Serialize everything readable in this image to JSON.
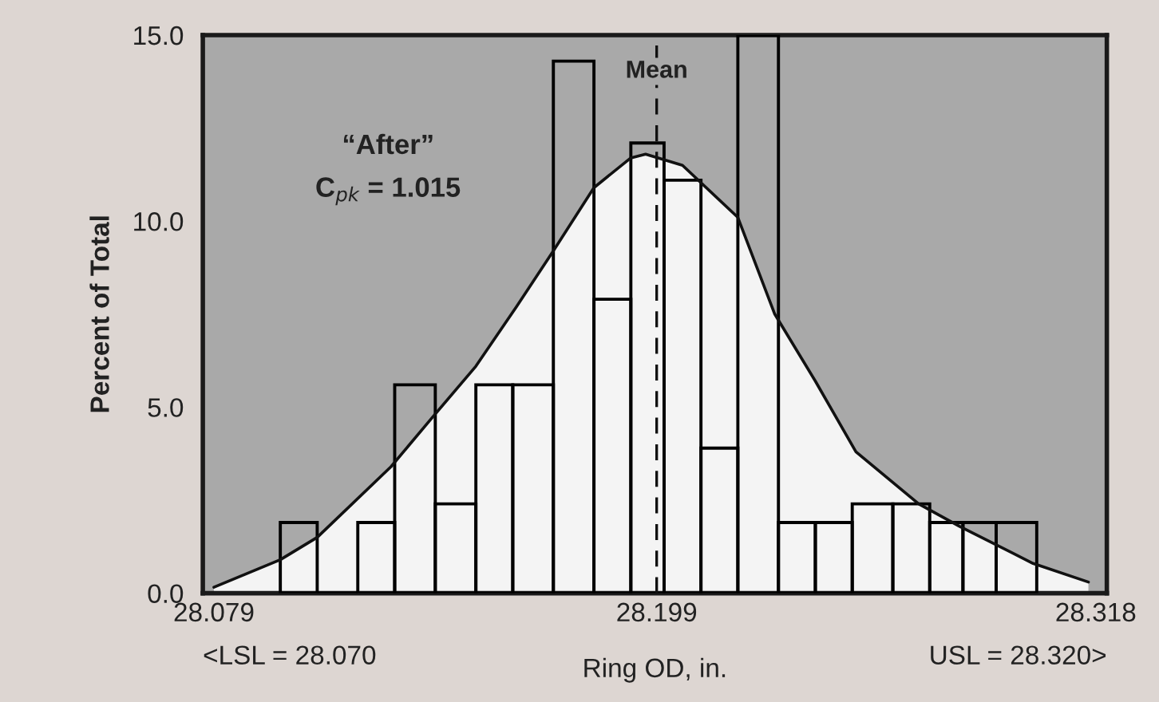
{
  "chart_data": {
    "type": "histogram",
    "xlabel": "Ring OD, in.",
    "ylabel": "Percent of Total",
    "bins": [
      28.097,
      28.107,
      28.118,
      28.128,
      28.139,
      28.15,
      28.16,
      28.171,
      28.182,
      28.192,
      28.201,
      28.211,
      28.221,
      28.232,
      28.242,
      28.252,
      28.263,
      28.273,
      28.282,
      28.291,
      28.302
    ],
    "values": [
      1.9,
      0,
      1.9,
      5.6,
      2.4,
      5.6,
      5.6,
      14.3,
      7.9,
      12.1,
      11.1,
      3.9,
      15,
      1.9,
      1.9,
      2.4,
      2.4,
      1.9,
      1.9,
      1.9
    ],
    "color": "#000000",
    "series": [
      {
        "type": "area",
        "color": "#f4f4f4",
        "x": [
          28.079,
          28.097,
          28.107,
          28.127,
          28.138,
          28.15,
          28.161,
          28.171,
          28.182,
          28.192,
          28.196,
          28.206,
          28.221,
          28.231,
          28.242,
          28.253,
          28.27,
          28.281,
          28.301,
          28.316
        ],
        "values": [
          0.16,
          0.9,
          1.5,
          3.4,
          4.7,
          6.1,
          7.7,
          9.2,
          10.9,
          11.7,
          11.8,
          11.5,
          10.1,
          7.5,
          5.7,
          3.8,
          2.4,
          1.8,
          0.8,
          0.3
        ]
      }
    ],
    "ref_lines": [
      {
        "axis": "x",
        "value": 28.199,
        "label": "Mean",
        "line_style": "dashed"
      }
    ],
    "annotations": [
      "“After”",
      "C$_{pk}$ = 1.015",
      "<LSL = 28.070",
      "USL = 28.320>"
    ],
    "xlim": [
      28.076,
      28.321
    ],
    "xticks": [
      28.079,
      28.199,
      28.318
    ],
    "ylim": [
      0,
      15
    ],
    "yticks": [
      {
        "value": 0,
        "label": "0.0"
      },
      {
        "value": 5,
        "label": "5.0"
      },
      {
        "value": 10,
        "label": "10.0"
      },
      {
        "value": 15,
        "label": "15.0"
      }
    ],
    "grid": false
  }
}
